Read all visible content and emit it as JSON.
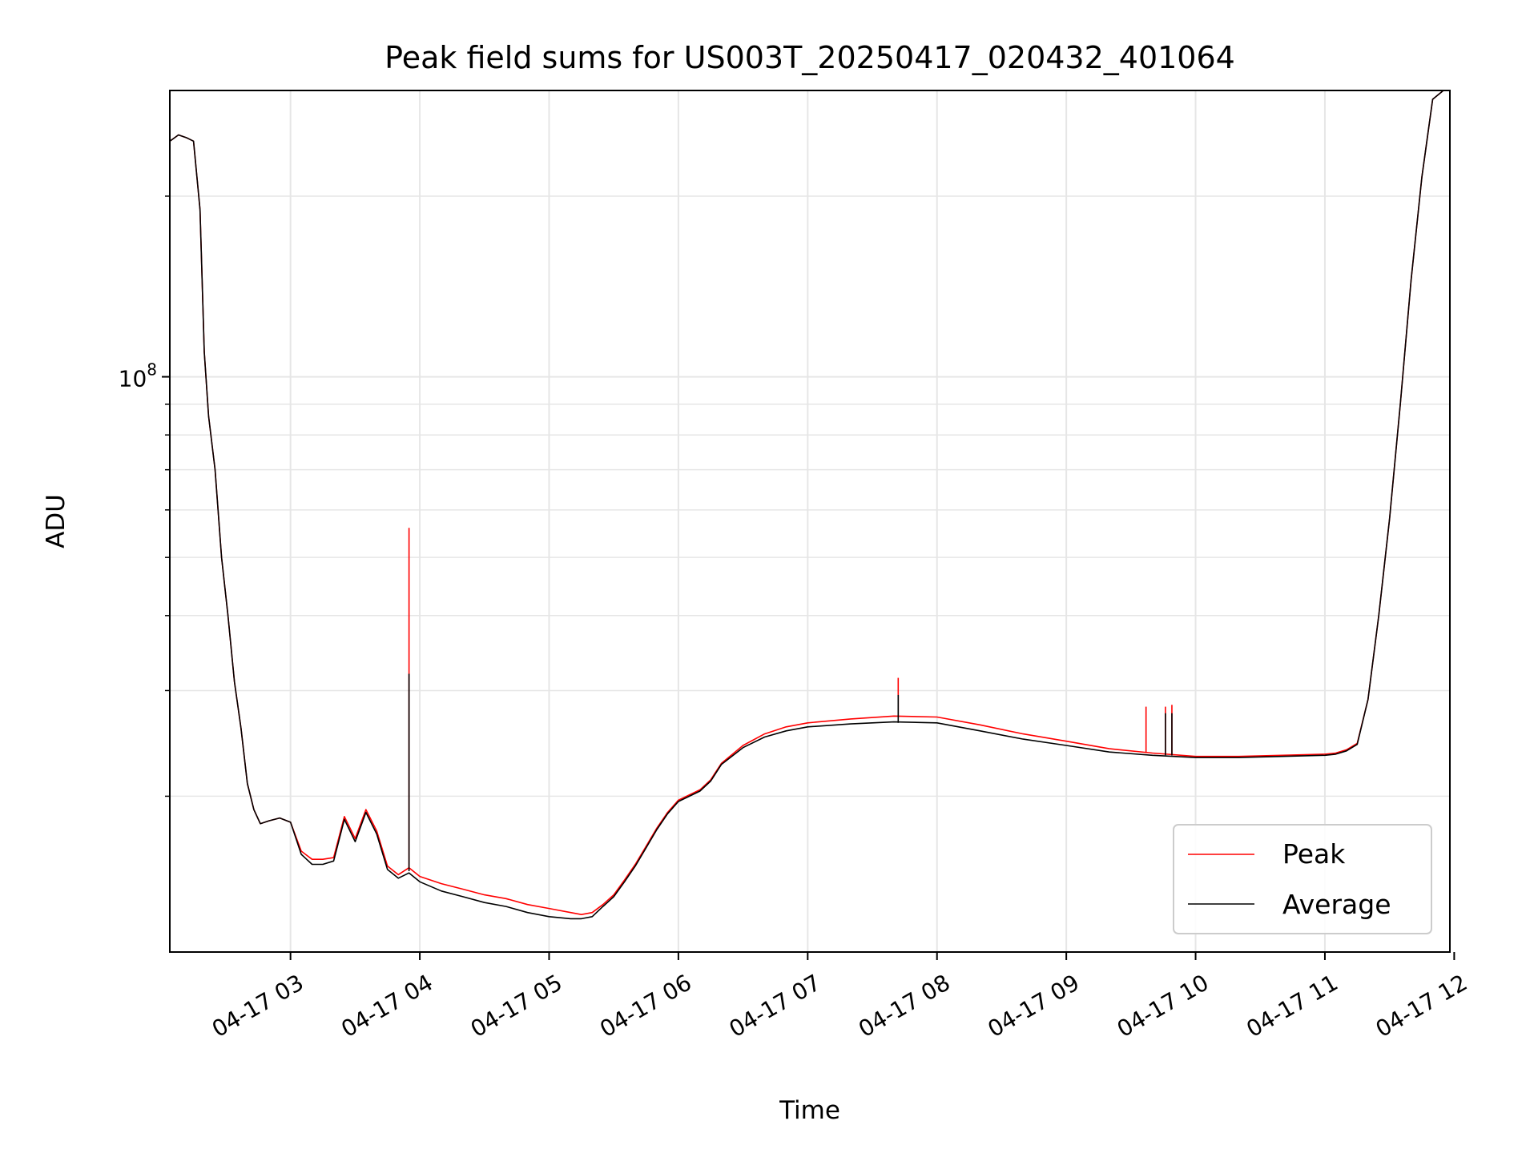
{
  "chart_data": {
    "type": "line",
    "title": "Peak field sums for US003T_20250417_020432_401064",
    "xlabel": "Time",
    "ylabel": "ADU",
    "y_scale": "log",
    "grid": true,
    "legend_placement": "lower-right",
    "xlim": [
      "2025-04-17 02:04",
      "2025-04-17 11:58"
    ],
    "ylim": [
      11000000,
      300000000
    ],
    "x_ticks": [
      {
        "time": "2025-04-17 03:00",
        "label": "04-17 03"
      },
      {
        "time": "2025-04-17 04:00",
        "label": "04-17 04"
      },
      {
        "time": "2025-04-17 05:00",
        "label": "04-17 05"
      },
      {
        "time": "2025-04-17 06:00",
        "label": "04-17 06"
      },
      {
        "time": "2025-04-17 07:00",
        "label": "04-17 07"
      },
      {
        "time": "2025-04-17 08:00",
        "label": "04-17 08"
      },
      {
        "time": "2025-04-17 09:00",
        "label": "04-17 09"
      },
      {
        "time": "2025-04-17 10:00",
        "label": "04-17 10"
      },
      {
        "time": "2025-04-17 11:00",
        "label": "04-17 11"
      },
      {
        "time": "2025-04-17 12:00",
        "label": "04-17 12"
      }
    ],
    "y_major_tick": {
      "value": 100000000,
      "base": "10",
      "exponent": "8"
    },
    "y_minor_ticks": [
      20000000,
      30000000,
      40000000,
      50000000,
      60000000,
      70000000,
      80000000,
      90000000,
      200000000
    ],
    "x": [
      "2025-04-17 02:04",
      "2025-04-17 02:08",
      "2025-04-17 02:12",
      "2025-04-17 02:15",
      "2025-04-17 02:18",
      "2025-04-17 02:20",
      "2025-04-17 02:22",
      "2025-04-17 02:25",
      "2025-04-17 02:28",
      "2025-04-17 02:31",
      "2025-04-17 02:34",
      "2025-04-17 02:37",
      "2025-04-17 02:40",
      "2025-04-17 02:43",
      "2025-04-17 02:46",
      "2025-04-17 02:50",
      "2025-04-17 02:55",
      "2025-04-17 03:00",
      "2025-04-17 03:05",
      "2025-04-17 03:10",
      "2025-04-17 03:15",
      "2025-04-17 03:20",
      "2025-04-17 03:25",
      "2025-04-17 03:30",
      "2025-04-17 03:35",
      "2025-04-17 03:40",
      "2025-04-17 03:45",
      "2025-04-17 03:50",
      "2025-04-17 03:55",
      "2025-04-17 04:00",
      "2025-04-17 04:10",
      "2025-04-17 04:20",
      "2025-04-17 04:30",
      "2025-04-17 04:40",
      "2025-04-17 04:50",
      "2025-04-17 05:00",
      "2025-04-17 05:10",
      "2025-04-17 05:15",
      "2025-04-17 05:20",
      "2025-04-17 05:25",
      "2025-04-17 05:30",
      "2025-04-17 05:35",
      "2025-04-17 05:40",
      "2025-04-17 05:45",
      "2025-04-17 05:50",
      "2025-04-17 05:55",
      "2025-04-17 06:00",
      "2025-04-17 06:10",
      "2025-04-17 06:15",
      "2025-04-17 06:20",
      "2025-04-17 06:30",
      "2025-04-17 06:40",
      "2025-04-17 06:50",
      "2025-04-17 07:00",
      "2025-04-17 07:20",
      "2025-04-17 07:40",
      "2025-04-17 08:00",
      "2025-04-17 08:20",
      "2025-04-17 08:40",
      "2025-04-17 09:00",
      "2025-04-17 09:20",
      "2025-04-17 09:40",
      "2025-04-17 10:00",
      "2025-04-17 10:20",
      "2025-04-17 10:40",
      "2025-04-17 11:00",
      "2025-04-17 11:05",
      "2025-04-17 11:10",
      "2025-04-17 11:15",
      "2025-04-17 11:20",
      "2025-04-17 11:25",
      "2025-04-17 11:30",
      "2025-04-17 11:35",
      "2025-04-17 11:40",
      "2025-04-17 11:45",
      "2025-04-17 11:50",
      "2025-04-17 11:55",
      "2025-04-17 11:58"
    ],
    "series": [
      {
        "name": "Peak",
        "color": "#ff0000",
        "values": [
          247000000,
          253000000,
          250000000,
          247000000,
          190000000,
          110000000,
          86000000,
          70000000,
          50000000,
          40000000,
          31000000,
          26000000,
          21000000,
          19000000,
          18000000,
          18200000,
          18400000,
          18100000,
          16200000,
          15700000,
          15700000,
          15800000,
          18500000,
          17000000,
          19000000,
          17500000,
          15300000,
          14800000,
          15200000,
          14700000,
          14300000,
          14000000,
          13700000,
          13500000,
          13200000,
          13000000,
          12800000,
          12700000,
          12800000,
          13200000,
          13700000,
          14500000,
          15400000,
          16500000,
          17700000,
          18800000,
          19700000,
          20500000,
          21300000,
          22700000,
          24300000,
          25400000,
          26100000,
          26500000,
          26900000,
          27200000,
          27100000,
          26300000,
          25400000,
          24700000,
          24000000,
          23600000,
          23300000,
          23300000,
          23400000,
          23500000,
          23600000,
          23900000,
          24500000,
          29000000,
          40000000,
          58000000,
          90000000,
          145000000,
          215000000,
          290000000,
          300000000,
          300000000
        ]
      },
      {
        "name": "Average",
        "color": "#000000",
        "values": [
          247000000,
          253000000,
          250000000,
          247000000,
          190000000,
          110000000,
          86000000,
          70000000,
          50000000,
          40000000,
          31000000,
          26000000,
          21000000,
          19000000,
          18000000,
          18200000,
          18400000,
          18100000,
          16000000,
          15400000,
          15400000,
          15600000,
          18300000,
          16800000,
          18800000,
          17300000,
          15100000,
          14600000,
          14900000,
          14400000,
          13900000,
          13600000,
          13300000,
          13100000,
          12800000,
          12600000,
          12500000,
          12500000,
          12600000,
          13100000,
          13600000,
          14400000,
          15300000,
          16400000,
          17600000,
          18700000,
          19600000,
          20400000,
          21200000,
          22600000,
          24100000,
          25100000,
          25700000,
          26100000,
          26400000,
          26600000,
          26500000,
          25700000,
          24900000,
          24300000,
          23700000,
          23400000,
          23200000,
          23200000,
          23300000,
          23400000,
          23500000,
          23800000,
          24400000,
          29000000,
          40000000,
          58000000,
          90000000,
          145000000,
          215000000,
          290000000,
          300000000,
          300000000
        ]
      }
    ],
    "spikes": [
      {
        "series": "Peak",
        "time": "2025-04-17 03:55",
        "base": 15200000,
        "top": 56000000
      },
      {
        "series": "Average",
        "time": "2025-04-17 03:55",
        "base": 15000000,
        "top": 32000000
      },
      {
        "series": "Peak",
        "time": "2025-04-17 07:42",
        "base": 27000000,
        "top": 31500000
      },
      {
        "series": "Average",
        "time": "2025-04-17 07:42",
        "base": 26500000,
        "top": 29500000
      },
      {
        "series": "Peak",
        "time": "2025-04-17 09:37",
        "base": 23600000,
        "top": 28200000
      },
      {
        "series": "Peak",
        "time": "2025-04-17 09:46",
        "base": 23500000,
        "top": 28200000
      },
      {
        "series": "Average",
        "time": "2025-04-17 09:46",
        "base": 23400000,
        "top": 27500000
      },
      {
        "series": "Peak",
        "time": "2025-04-17 09:49",
        "base": 23400000,
        "top": 28400000
      },
      {
        "series": "Average",
        "time": "2025-04-17 09:49",
        "base": 23400000,
        "top": 27500000
      }
    ]
  }
}
